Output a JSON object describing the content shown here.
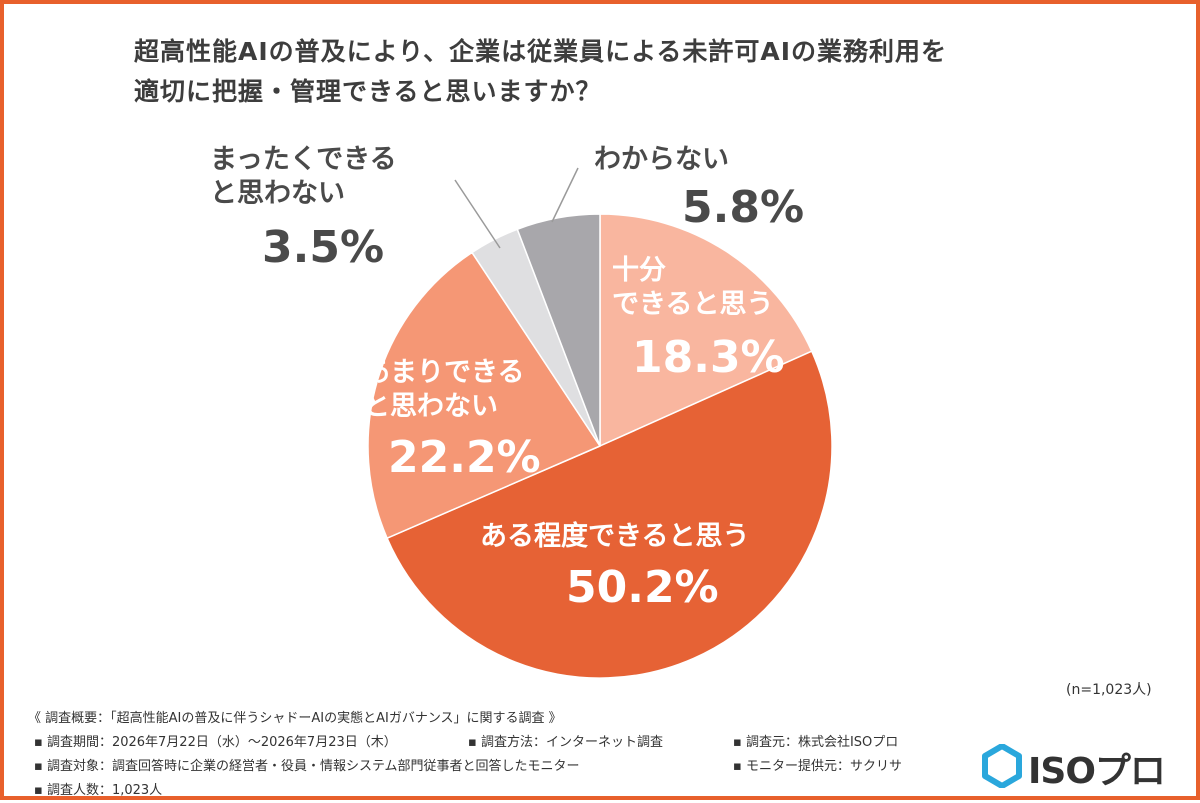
{
  "title": {
    "line1": "超高性能AIの普及により、企業は従業員による未許可AIの業務利用を",
    "line2": "適切に把握・管理できると思いますか？"
  },
  "chart_data": {
    "type": "pie",
    "title": "超高性能AIの普及により、企業は従業員による未許可AIの業務利用を適切に把握・管理できると思いますか？",
    "slices": [
      {
        "label": "十分できると思う",
        "value": 18.3,
        "display": "18.3%",
        "color": "#f9b69f"
      },
      {
        "label": "ある程度できると思う",
        "value": 50.2,
        "display": "50.2%",
        "color": "#e66235"
      },
      {
        "label": "あまりできると思わない",
        "value": 22.2,
        "display": "22.2%",
        "color": "#f59775"
      },
      {
        "label": "まったくできると思わない",
        "value": 3.5,
        "display": "3.5%",
        "color": "#dfdfe1"
      },
      {
        "label": "わからない",
        "value": 5.8,
        "display": "5.8%",
        "color": "#a8a7ab"
      }
    ],
    "start": "12 o'clock",
    "direction": "clockwise"
  },
  "labels": {
    "juubun_l1": "十分",
    "juubun_l2": "できると思う",
    "aruteido": "ある程度できると思う",
    "amari_l1": "あまりできる",
    "amari_l2": "と思わない",
    "mattaku_l1": "まったくできる",
    "mattaku_l2": "と思わない",
    "wakaranai": "わからない"
  },
  "n_note": "(n=1,023人)",
  "footer": {
    "heading": "《 調査概要：「超高性能AIの普及に伴うシャドーAIの実態とAIガバナンス」に関する調査 》",
    "period": "▪ 調査期間：2026年7月22日（水）～2026年7月23日（木）",
    "method": "▪ 調査方法：インターネット調査",
    "organizer": "▪ 調査元：株式会社ISOプロ",
    "target": "▪ 調査対象：調査回答時に企業の経営者・役員・情報システム部門従事者と回答したモニター",
    "provider": "▪ モニター提供元：サクリサ",
    "count": "▪ 調査人数：1,023人"
  },
  "logo": {
    "text": "ISOプロ",
    "color": "#2aa7dc"
  },
  "colors": {
    "frame": "#e8602c",
    "leader": "#9a9a9a"
  }
}
